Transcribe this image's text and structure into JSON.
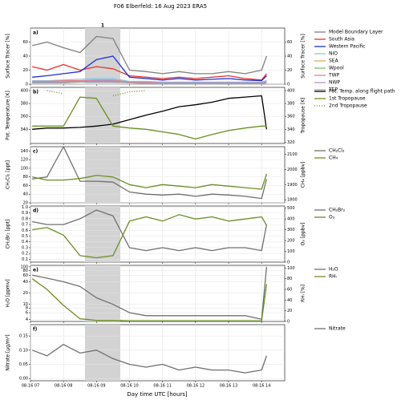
{
  "title": "F06 Elberfeld: 16 Aug 2023   ERA5",
  "xlabel": "Day time UTC  [hours]",
  "highlight": {
    "from": 8.65,
    "to": 9.72,
    "label": "1"
  },
  "chart_data": [
    {
      "type": "line",
      "label": "a)",
      "ylabel": "Surface Tracer [%]",
      "y2label": "Surface Tracer [%]",
      "x": [
        7.05,
        7.5,
        8,
        8.5,
        9,
        9.5,
        10,
        10.5,
        11,
        11.5,
        12,
        12.5,
        13,
        13.5,
        14,
        14.15
      ],
      "ylim": [
        0,
        80
      ],
      "yticks": [
        0,
        20,
        40,
        60
      ],
      "y2lim": [
        0,
        80
      ],
      "y2ticks": [
        0,
        20,
        40,
        60
      ],
      "series": [
        {
          "name": "Model Boundary Layer",
          "color": "#808080",
          "values": [
            55,
            60,
            52,
            45,
            68,
            65,
            20,
            18,
            15,
            18,
            15,
            15,
            18,
            15,
            20,
            40
          ]
        },
        {
          "name": "South Asia",
          "color": "#e8312f",
          "values": [
            25,
            20,
            28,
            20,
            25,
            22,
            12,
            10,
            8,
            10,
            8,
            10,
            12,
            8,
            6,
            15
          ]
        },
        {
          "name": "Western Pacific",
          "color": "#1f2fd6",
          "values": [
            10,
            12,
            15,
            18,
            35,
            40,
            10,
            8,
            6,
            8,
            6,
            7,
            8,
            6,
            5,
            12
          ]
        },
        {
          "name": "NIO",
          "color": "#8cc5e3",
          "values": [
            5,
            5,
            6,
            7,
            8,
            8,
            4,
            4,
            3,
            3,
            3,
            3,
            3,
            3,
            3,
            5
          ]
        },
        {
          "name": "SEA",
          "color": "#f0a050",
          "values": [
            3,
            3,
            4,
            4,
            5,
            5,
            3,
            2,
            2,
            2,
            2,
            2,
            2,
            2,
            2,
            3
          ]
        },
        {
          "name": "Wpool",
          "color": "#7fbf5f",
          "values": [
            2,
            2,
            3,
            3,
            4,
            4,
            2,
            2,
            1,
            1,
            1,
            1,
            1,
            1,
            1,
            2
          ]
        },
        {
          "name": "TWP",
          "color": "#f08080",
          "values": [
            4,
            4,
            5,
            5,
            6,
            6,
            3,
            3,
            2,
            2,
            2,
            2,
            2,
            2,
            2,
            4
          ]
        },
        {
          "name": "NWP",
          "color": "#b090d0",
          "values": [
            3,
            3,
            3,
            4,
            5,
            5,
            2,
            2,
            2,
            2,
            2,
            2,
            2,
            2,
            2,
            3
          ]
        },
        {
          "name": "TEP",
          "color": "#a0a0a0",
          "values": [
            2,
            2,
            2,
            3,
            3,
            3,
            2,
            1,
            1,
            1,
            1,
            1,
            1,
            1,
            1,
            2
          ]
        }
      ]
    },
    {
      "type": "line",
      "label": "b)",
      "ylabel": "Pot. Temperature [K]",
      "y2label": "Tropopause [K]",
      "x": [
        7.05,
        7.5,
        8,
        8.5,
        9,
        9.5,
        10,
        10.5,
        11,
        11.5,
        12,
        12.5,
        13,
        13.5,
        14,
        14.15
      ],
      "ylim": [
        318,
        405
      ],
      "yticks": [
        340,
        360,
        380,
        400
      ],
      "y2lim": [
        318,
        405
      ],
      "y2ticks": [
        320,
        340,
        360,
        380,
        400
      ],
      "series": [
        {
          "name": "Pot. Temp. along flight path",
          "color": "#000000",
          "values": [
            340,
            342,
            342,
            343,
            345,
            348,
            355,
            362,
            368,
            375,
            378,
            382,
            388,
            390,
            392,
            340
          ]
        },
        {
          "name": "1st Tropopause",
          "color": "#6b8e23",
          "axis": "y2",
          "values": [
            345,
            345,
            345,
            390,
            388,
            345,
            342,
            340,
            336,
            332,
            325,
            332,
            338,
            342,
            345,
            345
          ]
        },
        {
          "name": "2nd Tropopause",
          "color": "#6b8e23",
          "axis": "y2",
          "style": "dotted",
          "values": [
            null,
            400,
            395,
            null,
            null,
            392,
            398,
            400,
            null,
            null,
            null,
            null,
            null,
            null,
            null,
            null
          ]
        }
      ]
    },
    {
      "type": "line",
      "label": "c)",
      "ylabel": "CH₂Cl₂ [ppt]",
      "y2label": "CH₄ [ppbv]",
      "x": [
        7.05,
        7.5,
        8,
        8.5,
        9,
        9.5,
        10,
        10.5,
        11,
        11.5,
        12,
        12.5,
        13,
        13.5,
        14,
        14.15
      ],
      "ylim": [
        20,
        150
      ],
      "yticks": [
        20,
        40,
        60,
        80,
        100,
        120,
        140
      ],
      "y2lim": [
        1780,
        2150
      ],
      "y2ticks": [
        1800,
        1900,
        2000,
        2100
      ],
      "series": [
        {
          "name": "CH₂Cl₂",
          "color": "#707070",
          "values": [
            75,
            80,
            150,
            70,
            70,
            68,
            45,
            40,
            38,
            40,
            35,
            40,
            38,
            35,
            30,
            75
          ]
        },
        {
          "name": "CH₄",
          "color": "#6b8e23",
          "axis": "y2",
          "values": [
            1950,
            1930,
            1930,
            1940,
            1960,
            1950,
            1900,
            1880,
            1900,
            1890,
            1880,
            1900,
            1890,
            1880,
            1870,
            1970
          ]
        }
      ]
    },
    {
      "type": "line",
      "label": "d)",
      "ylabel": "CH₂Br₂ [ppt]",
      "y2label": "O₃ [ppbv]",
      "x": [
        7.05,
        7.5,
        8,
        8.5,
        9,
        9.5,
        10,
        10.5,
        11,
        11.5,
        12,
        12.5,
        13,
        13.5,
        14,
        14.15
      ],
      "ylim": [
        0.05,
        1.02
      ],
      "yticks": [
        0.1,
        0.2,
        0.3,
        0.4,
        0.5,
        0.6,
        0.7,
        0.8,
        0.9,
        {
          "value": 1,
          "label": "1.0"
        }
      ],
      "y2lim": [
        0,
        520
      ],
      "y2ticks": [
        0,
        100,
        200,
        300,
        400,
        500
      ],
      "series": [
        {
          "name": "CH₂Br₂",
          "color": "#707070",
          "values": [
            0.75,
            0.7,
            0.7,
            0.8,
            0.95,
            0.85,
            0.3,
            0.25,
            0.3,
            0.25,
            0.3,
            0.25,
            0.3,
            0.3,
            0.25,
            0.7
          ]
        },
        {
          "name": "O₃",
          "color": "#6b8e23",
          "axis": "y2",
          "values": [
            300,
            320,
            250,
            60,
            40,
            60,
            380,
            420,
            380,
            440,
            400,
            420,
            380,
            400,
            420,
            340
          ]
        }
      ]
    },
    {
      "type": "line",
      "label": "e)",
      "ylabel": "H₂O [ppmv]",
      "y2label": "RHᵢ [%]",
      "log": true,
      "x": [
        7.05,
        7.5,
        8,
        8.5,
        9,
        9.5,
        10,
        10.5,
        11,
        11.5,
        12,
        12.5,
        13,
        13.5,
        14,
        14.15
      ],
      "ylim": [
        3.5,
        110
      ],
      "yticks": [
        4,
        6,
        8,
        10,
        20,
        40,
        60,
        80,
        100
      ],
      "y2lim": [
        0,
        105
      ],
      "y2ticks": [
        0,
        20,
        40,
        60,
        80,
        100
      ],
      "series": [
        {
          "name": "H₂O",
          "color": "#707070",
          "values": [
            60,
            50,
            40,
            30,
            15,
            10,
            6,
            5,
            5,
            5,
            5,
            5,
            5,
            5,
            4,
            100
          ]
        },
        {
          "name": "RHᵢ",
          "color": "#6b8e23",
          "axis": "y2",
          "values": [
            80,
            60,
            30,
            5,
            2,
            2,
            1,
            1,
            1,
            1,
            1,
            1,
            1,
            1,
            1,
            70
          ]
        }
      ]
    },
    {
      "type": "line",
      "label": "f)",
      "ylabel": "Nitrate [µg/m³]",
      "x": [
        7.05,
        7.5,
        8,
        8.5,
        9,
        9.5,
        10,
        10.5,
        11,
        11.5,
        12,
        12.5,
        13,
        13.5,
        14,
        14.15
      ],
      "xlim": [
        7,
        14.7
      ],
      "xticks": [
        {
          "value": 7,
          "label": "08-16 07"
        },
        {
          "value": 8,
          "label": "08-16 08"
        },
        {
          "value": 9,
          "label": "08-16 09"
        },
        {
          "value": 10,
          "label": "08-16 10"
        },
        {
          "value": 11,
          "label": "08-16 11"
        },
        {
          "value": 12,
          "label": "08-16 12"
        },
        {
          "value": 13,
          "label": "08-16 13"
        },
        {
          "value": 14,
          "label": "08-16 14"
        }
      ],
      "ylim": [
        -0.008,
        0.19
      ],
      "yticks": [
        {
          "value": 0,
          "label": "0.00"
        },
        0.05,
        {
          "value": 0.1,
          "label": "0.10"
        },
        0.15
      ],
      "series": [
        {
          "name": "Nitrate",
          "color": "#707070",
          "values": [
            0.1,
            0.08,
            0.12,
            0.09,
            0.1,
            0.07,
            0.05,
            0.04,
            0.05,
            0.03,
            0.04,
            0.03,
            0.03,
            0.02,
            0.03,
            0.08
          ]
        }
      ]
    }
  ]
}
